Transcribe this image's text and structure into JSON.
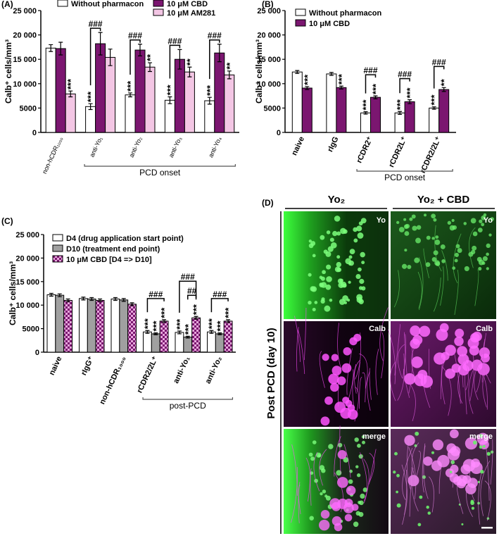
{
  "chart_data": [
    {
      "type": "bar",
      "panel": "(A)",
      "y_label": "Calb⁺ cells/mm³",
      "categories": [
        "non-hCDR₁₀₀₀",
        "anti-Yo₁",
        "anti-Yo₂",
        "anti-Yo₃",
        "anti-Yo₄"
      ],
      "series": [
        {
          "name": "Without pharmacon",
          "color": "#ffffff",
          "values": [
            17300,
            5300,
            7700,
            6600,
            6500
          ],
          "errors": [
            700,
            600,
            400,
            700,
            700
          ],
          "significance": [
            null,
            "***",
            "***",
            "***",
            "***"
          ]
        },
        {
          "name": "10 μM CBD",
          "color": "#7b1670",
          "values": [
            17200,
            18200,
            16900,
            15000,
            16300
          ],
          "errors": [
            1300,
            2300,
            1200,
            2000,
            1800
          ],
          "significance": [
            null,
            null,
            null,
            null,
            null
          ]
        },
        {
          "name": "10 μM AM281",
          "color": "#f3c6e4",
          "values": [
            7900,
            15400,
            13400,
            12400,
            11800
          ],
          "errors": [
            600,
            1700,
            900,
            1000,
            800
          ],
          "significance": [
            "***",
            null,
            "**",
            "**",
            "**"
          ]
        }
      ],
      "bracket_labels": [
        null,
        "###",
        "###",
        "###",
        "###"
      ],
      "group_label": "PCD onset",
      "ylim": [
        0,
        25000
      ],
      "yticks": [
        0,
        5000,
        {
          "value": 10000,
          "label": "10 000"
        },
        {
          "value": 15000,
          "label": "15 000"
        },
        {
          "value": 20000,
          "label": "20 000"
        },
        {
          "value": 25000,
          "label": "25 000"
        }
      ]
    },
    {
      "type": "bar",
      "panel": "(B)",
      "y_label": "Calb⁺ cells/mm³",
      "categories": [
        "naive",
        "rIgG",
        "rCDR2⁺",
        "rCDR2L⁺",
        "rCDR2/2L⁺"
      ],
      "series": [
        {
          "name": "Without pharmacon",
          "color": "#ffffff",
          "values": [
            12400,
            12000,
            4000,
            4000,
            5000
          ],
          "errors": [
            300,
            300,
            250,
            300,
            250
          ],
          "significance": [
            null,
            null,
            "***",
            "***",
            "***"
          ]
        },
        {
          "name": "10 μM CBD",
          "color": "#7b1670",
          "values": [
            9100,
            9200,
            7200,
            6300,
            8800
          ],
          "errors": [
            300,
            300,
            300,
            400,
            400
          ],
          "significance": [
            "***",
            "***",
            "***",
            "***",
            "**"
          ]
        }
      ],
      "bracket_labels": [
        null,
        null,
        "###",
        "###",
        "###"
      ],
      "group_label": "PCD onset",
      "ylim": [
        0,
        25000
      ],
      "yticks": [
        0,
        5000,
        {
          "value": 10000,
          "label": "10 000"
        },
        {
          "value": 15000,
          "label": "15 000"
        },
        {
          "value": 20000,
          "label": "20 000"
        },
        {
          "value": 25000,
          "label": "25 000"
        }
      ]
    },
    {
      "type": "bar",
      "panel": "(C)",
      "y_label": "Calb⁺ cells/mm³",
      "categories": [
        "naive",
        "rIgG⁺",
        "non-hCDR₁₀₀₀",
        "rCDR2/2L⁺",
        "anti-Yo₁",
        "anti-Yo₂"
      ],
      "series": [
        {
          "name": "D4 (drug application start point)",
          "color": "#ffffff",
          "values": [
            12200,
            11400,
            11300,
            4300,
            4200,
            4300
          ],
          "errors": [
            300,
            300,
            300,
            300,
            300,
            300
          ],
          "significance": [
            null,
            null,
            null,
            "***",
            "***",
            "***"
          ]
        },
        {
          "name": "D10 (treatment end point)",
          "color": "#a0a0a0",
          "values": [
            12100,
            11300,
            11100,
            3900,
            3200,
            3900
          ],
          "errors": [
            300,
            300,
            300,
            200,
            200,
            200
          ],
          "significance": [
            null,
            null,
            null,
            "***",
            "***",
            "***"
          ]
        },
        {
          "name": "10 μM CBD [D4 => D10]",
          "color": "#e7a6dc",
          "pattern_color": "#7b1670",
          "values": [
            11000,
            11000,
            10200,
            6600,
            7300,
            6600
          ],
          "errors": [
            300,
            300,
            300,
            300,
            300,
            300
          ],
          "significance": [
            null,
            null,
            null,
            "***",
            "***",
            "***"
          ]
        }
      ],
      "bracket_labels": [
        null,
        null,
        null,
        "###",
        "###",
        "###"
      ],
      "bracket2_labels": [
        null,
        null,
        null,
        null,
        "##",
        null
      ],
      "group_label": "post-PCD",
      "ylim": [
        0,
        25000
      ],
      "yticks": [
        0,
        5000,
        {
          "value": 10000,
          "label": "10 000"
        },
        {
          "value": 15000,
          "label": "15 000"
        },
        {
          "value": 20000,
          "label": "20 000"
        },
        {
          "value": 25000,
          "label": "25 000"
        }
      ]
    }
  ],
  "panel_d": {
    "panel": "(D)",
    "columns": [
      "Yo₂",
      "Yo₂ + CBD"
    ],
    "rows": [
      "Yo",
      "Calb",
      "merge"
    ],
    "side_label": "Post PCD (day 10)"
  }
}
